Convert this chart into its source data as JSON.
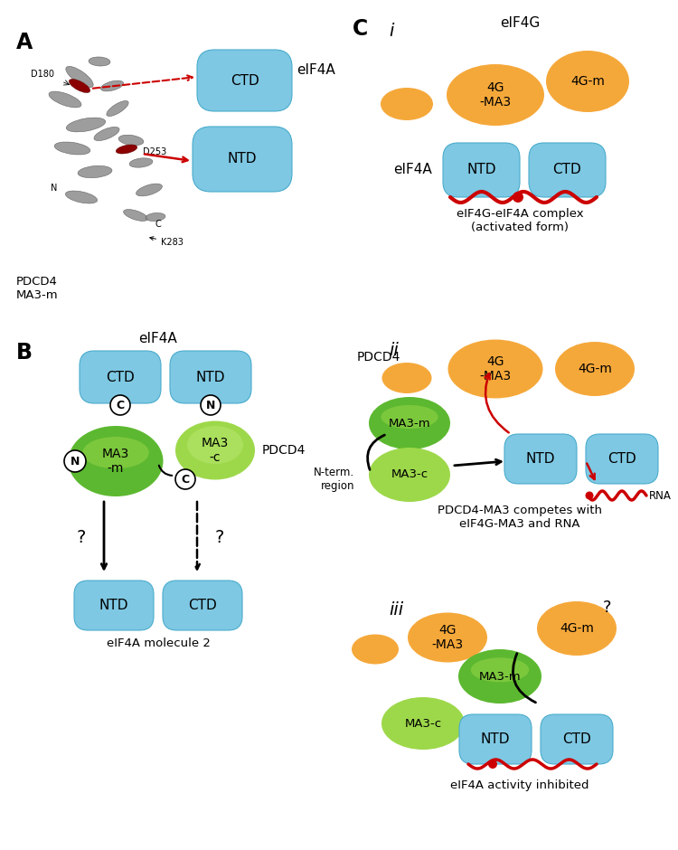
{
  "blue_face": "#7EC8E3",
  "blue_edge": "#4AACCC",
  "orange_face": "#F5A83A",
  "green_face_dark": "#5CB830",
  "green_face_light": "#9DD84A",
  "red": "#CC0000",
  "white": "#FFFFFF",
  "black": "#000000",
  "gray_helix": "#909090",
  "gray_dark": "#555555",
  "red_helix": "#8B0000",
  "panel_A_label": "A",
  "panel_B_label": "B",
  "panel_C_label": "C",
  "CTD_label": "CTD",
  "NTD_label": "NTD",
  "eIF4A_label": "eIF4A",
  "PDCD4_label": "PDCD4",
  "MA3m_label": "MA3\n-m",
  "MA3c_label": "MA3\n-c",
  "N_label": "N",
  "C_label": "C",
  "panel_A_protein_label": "PDCD4\nMA3-m",
  "panel_B_eIF4A2_label": "eIF4A molecule 2",
  "ci_eIF4G_label": "eIF4G",
  "ci_4GMA3_label": "4G\n-MA3",
  "ci_4Gm_label": "4G-m",
  "ci_eIF4A_label": "eIF4A",
  "ci_caption": "eIF4G-eIF4A complex\n(activated form)",
  "cii_label": "ii",
  "cii_PDCD4_label": "PDCD4",
  "cii_MA3m_label": "MA3-m",
  "cii_MA3c_label": "MA3-c",
  "cii_Nterm_label": "N-term.\nregion",
  "cii_RNA_label": "RNA",
  "cii_caption": "PDCD4-MA3 competes with\neIF4G-MA3 and RNA",
  "ciii_label": "iii",
  "ciii_4GMA3_label": "4G\n-MA3",
  "ciii_4Gm_label": "4G-m",
  "ciii_MA3m_label": "MA3-m",
  "ciii_MA3c_label": "MA3-c",
  "ciii_q_label": "?",
  "ciii_caption": "eIF4A activity inhibited"
}
